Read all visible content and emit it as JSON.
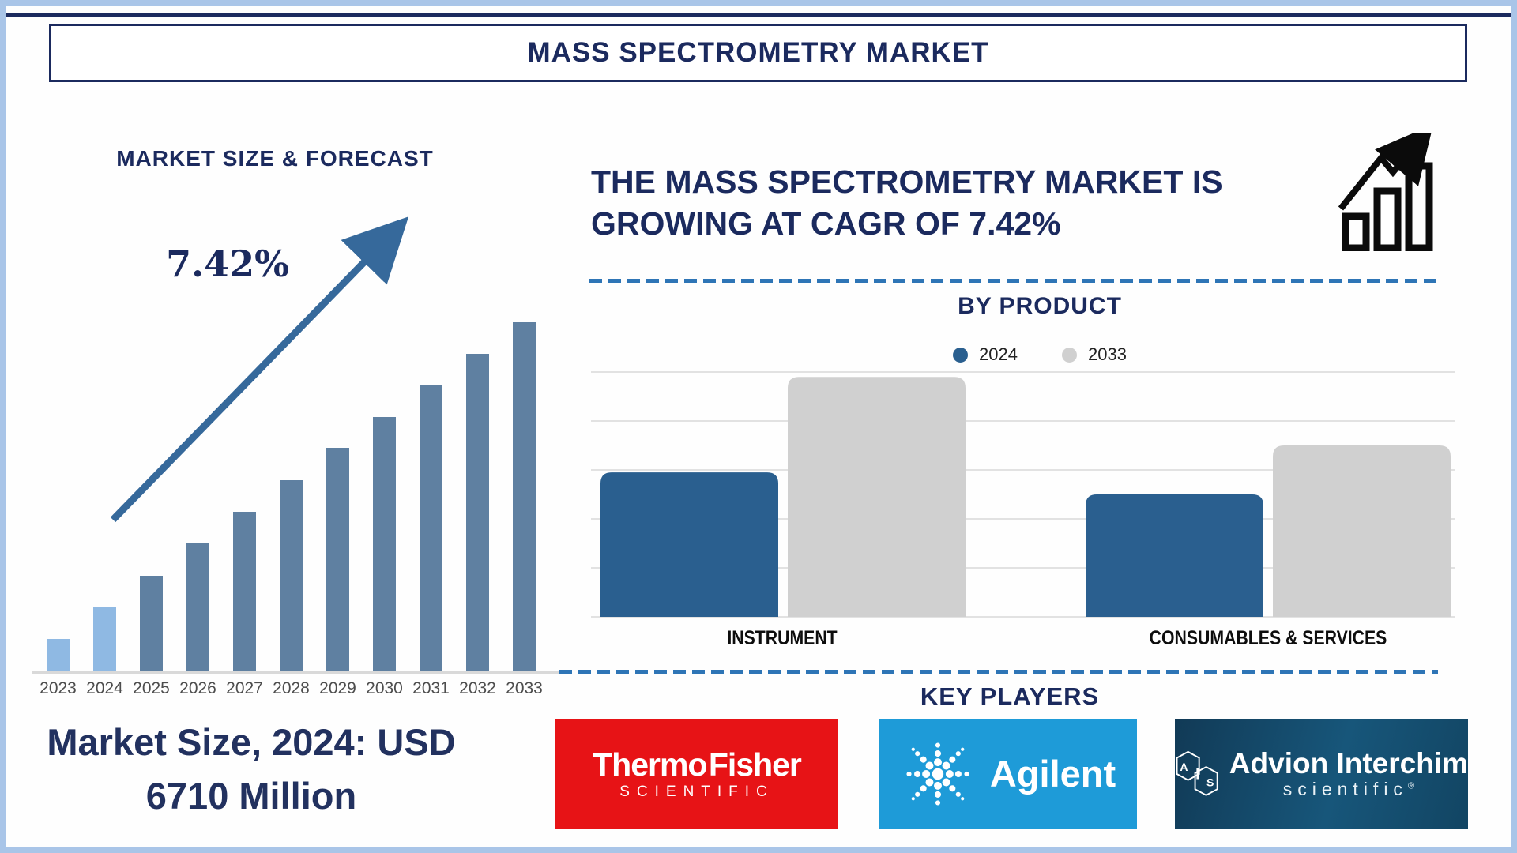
{
  "title": "MASS SPECTROMETRY MARKET",
  "left": {
    "section_title": "MARKET SIZE & FORECAST",
    "cagr_label": "7.42%",
    "market_size_line1": "Market Size, 2024: USD",
    "market_size_line2": "6710 Million"
  },
  "right": {
    "headline_line1": "THE MASS SPECTROMETRY MARKET IS",
    "headline_line2": "GROWING AT CAGR OF 7.42%",
    "by_product_title": "BY PRODUCT",
    "key_players_title": "KEY PLAYERS",
    "logos": [
      {
        "id": "thermo-fisher",
        "line1": "Thermo Fisher",
        "line2": "SCIENTIFIC",
        "bg": "#e71316"
      },
      {
        "id": "agilent",
        "line1": "Agilent",
        "bg": "#1e9bd8"
      },
      {
        "id": "advion-interchim",
        "line1": "Advion Interchim",
        "line2": "scientific",
        "reg": "®",
        "monogram": "AIS",
        "bg": "#155571"
      }
    ]
  },
  "colors": {
    "navy": "#1b2a5e",
    "frame_blue": "#a9c5e8",
    "dashed_blue": "#2e75b6",
    "arrow_blue": "#36699b",
    "axis_gray": "#d9d9d9",
    "year_gray": "#4d4d4d"
  },
  "chart_data": [
    {
      "type": "bar",
      "title": "MARKET SIZE & FORECAST",
      "categories": [
        "2023",
        "2024",
        "2025",
        "2026",
        "2027",
        "2028",
        "2029",
        "2030",
        "2031",
        "2032",
        "2033"
      ],
      "values": [
        41,
        82,
        121,
        162,
        202,
        242,
        283,
        322,
        362,
        402,
        442
      ],
      "values_unit": "relative bar height, px (no y-axis shown in figure)",
      "annotation": "7.42%",
      "cagr": "7.42%",
      "known_point": "Market Size, 2024: USD 6710 Million",
      "highlight_count": 2,
      "highlight_color": "#8fb9e3",
      "bar_color": "#5f80a1",
      "trend_arrow": true,
      "xlabel": "",
      "ylabel": ""
    },
    {
      "type": "bar",
      "title": "BY PRODUCT",
      "categories": [
        "INSTRUMENT",
        "CONSUMABLES & SERVICES"
      ],
      "series": [
        {
          "name": "2024",
          "color": "#2a5f8f",
          "values": [
            2.95,
            2.5
          ]
        },
        {
          "name": "2033",
          "color": "#d0d0d0",
          "values": [
            4.9,
            3.5
          ]
        }
      ],
      "ylim": [
        0,
        5
      ],
      "gridlines": 6,
      "legend_position": "top",
      "xlabel": "",
      "ylabel": ""
    }
  ]
}
